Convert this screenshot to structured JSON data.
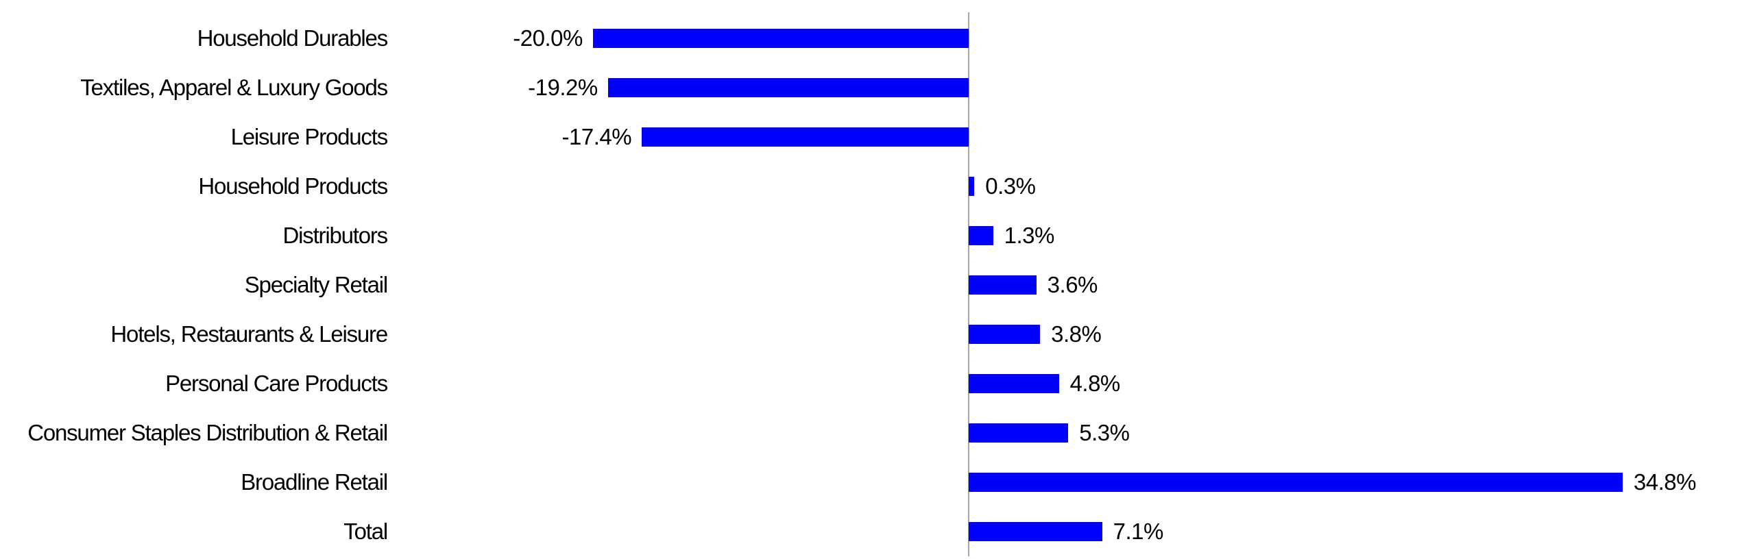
{
  "chart_data": {
    "type": "bar",
    "orientation": "horizontal",
    "title": "",
    "xlabel": "",
    "ylabel": "",
    "unit": "%",
    "categories": [
      "Household Durables",
      "Textiles, Apparel & Luxury Goods",
      "Leisure Products",
      "Household Products",
      "Distributors",
      "Specialty Retail",
      "Hotels, Restaurants & Leisure",
      "Personal Care Products",
      "Consumer Staples Distribution & Retail",
      "Broadline Retail",
      "Total"
    ],
    "values": [
      -20.0,
      -19.2,
      -17.4,
      0.3,
      1.3,
      3.6,
      3.8,
      4.8,
      5.3,
      34.8,
      7.1
    ],
    "value_labels": [
      "-20.0%",
      "-19.2%",
      "-17.4%",
      "0.3%",
      "1.3%",
      "3.6%",
      "3.8%",
      "4.8%",
      "5.3%",
      "34.8%",
      "7.1%"
    ],
    "bar_color": "#0000FF",
    "zero_line_color": "#A6A6A6",
    "text_color": "#000000",
    "background_color": "#FFFFFF",
    "value_axis_labels_visible": false,
    "gridlines": false,
    "legend": false
  }
}
